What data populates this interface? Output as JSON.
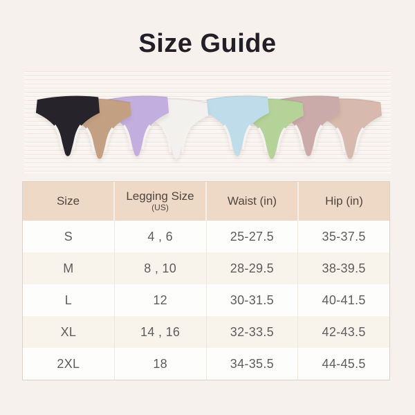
{
  "title": "Size Guide",
  "products": {
    "description": "row of 8 overlapping seamless thongs",
    "gusset_color": "#f4f2ef",
    "items": [
      {
        "name": "black",
        "color": "#26242a"
      },
      {
        "name": "nude-tan",
        "color": "#c4a083"
      },
      {
        "name": "lavender",
        "color": "#c3afdf"
      },
      {
        "name": "white",
        "color": "#f3f1ee"
      },
      {
        "name": "light-blue",
        "color": "#bedce9"
      },
      {
        "name": "light-green",
        "color": "#b5d399"
      },
      {
        "name": "dusty-mauve",
        "color": "#cbabaa"
      },
      {
        "name": "blush-pink",
        "color": "#d7b9ad"
      }
    ]
  },
  "table": {
    "headers": [
      {
        "label": "Size",
        "sub": ""
      },
      {
        "label": "Legging Size",
        "sub": "(US)"
      },
      {
        "label": "Waist (in)",
        "sub": ""
      },
      {
        "label": "Hip (in)",
        "sub": ""
      }
    ],
    "rows": [
      [
        "S",
        "4 , 6",
        "25-27.5",
        "35-37.5"
      ],
      [
        "M",
        "8 , 10",
        "28-29.5",
        "38-39.5"
      ],
      [
        "L",
        "12",
        "30-31.5",
        "40-41.5"
      ],
      [
        "XL",
        "14 , 16",
        "32-33.5",
        "42-43.5"
      ],
      [
        "2XL",
        "18",
        "34-35.5",
        "44-45.5"
      ]
    ]
  },
  "colors": {
    "background": "#f6f1ed",
    "strip_background": "#faf4f0",
    "header_bg": "#edd9c6",
    "header_text": "#4f463e",
    "row_alt_bg": "#f9f4eb",
    "body_text": "#5d5d5d",
    "title_text": "#221f26"
  }
}
